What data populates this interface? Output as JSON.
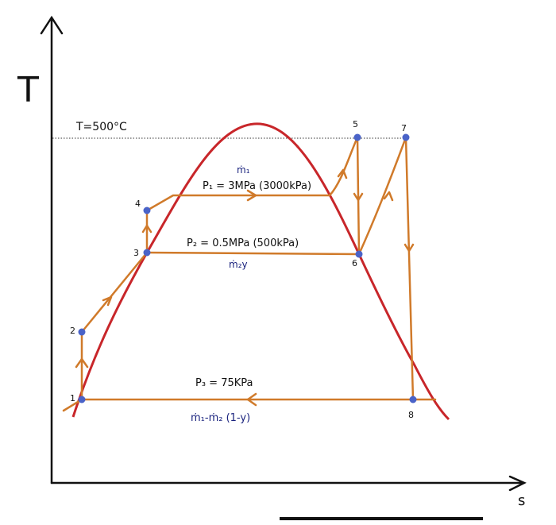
{
  "axes": {
    "y_label": "T",
    "x_label": "s"
  },
  "isotherm": {
    "label": "T=500°C"
  },
  "points": [
    {
      "label": "1"
    },
    {
      "label": "2"
    },
    {
      "label": "3"
    },
    {
      "label": "4"
    },
    {
      "label": "5"
    },
    {
      "label": "6"
    },
    {
      "label": "7"
    },
    {
      "label": "8"
    }
  ],
  "pressures": [
    {
      "label": "P₁ = 3MPa (3000kPa)",
      "flow": "ṁ₁"
    },
    {
      "label": "P₂ = 0.5MPa (500kPa)",
      "flow": "ṁ₂y"
    },
    {
      "label": "P₃ = 75KPa",
      "flow": "ṁ₁-ṁ₂ (1-y)"
    }
  ]
}
